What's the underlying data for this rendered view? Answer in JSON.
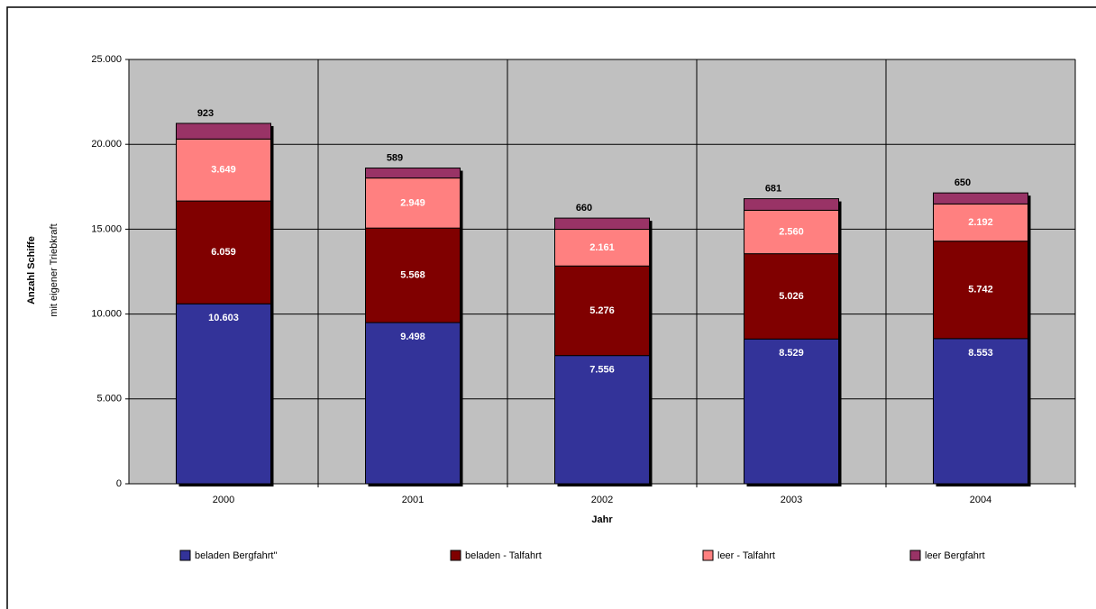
{
  "chart_data": {
    "type": "stacked_bar",
    "y_label": "Anzahl Schiffe",
    "y_sublabel": "mit eigener Triebkraft",
    "x_label": "Jahr",
    "categories": [
      "2000",
      "2001",
      "2002",
      "2003",
      "2004"
    ],
    "series": [
      {
        "name": "beladen  Bergfahrt\"",
        "color": "#333399",
        "values": [
          10603,
          9498,
          7556,
          8529,
          8553
        ],
        "value_labels": [
          "10.603",
          "9.498",
          "7.556",
          "8.529",
          "8.553"
        ]
      },
      {
        "name": "beladen - Talfahrt",
        "color": "#800000",
        "values": [
          6059,
          5568,
          5276,
          5026,
          5742
        ],
        "value_labels": [
          "6.059",
          "5.568",
          "5.276",
          "5.026",
          "5.742"
        ]
      },
      {
        "name": "leer -  Talfahrt",
        "color": "#ff8080",
        "values": [
          3649,
          2949,
          2161,
          2560,
          2192
        ],
        "value_labels": [
          "3.649",
          "2.949",
          "2.161",
          "2.560",
          "2.192"
        ]
      },
      {
        "name": "leer Bergfahrt",
        "color": "#993366",
        "values": [
          923,
          589,
          660,
          681,
          650
        ],
        "value_labels": [
          "923",
          "589",
          "660",
          "681",
          "650"
        ]
      }
    ],
    "ylim": [
      0,
      25000
    ],
    "yticks": [
      0,
      {
        "value": 5000,
        "label": "5.000"
      },
      {
        "value": 10000,
        "label": "10.000"
      },
      {
        "value": 15000,
        "label": "15.000"
      },
      {
        "value": 20000,
        "label": "20.000"
      },
      {
        "value": 25000,
        "label": "25.000"
      }
    ],
    "grid": true,
    "legend": "bottom"
  }
}
